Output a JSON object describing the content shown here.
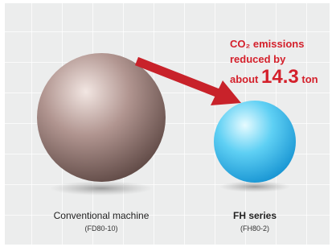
{
  "annotation": {
    "line1": "CO₂ emissions",
    "line2": "reduced by",
    "prefix": "about",
    "amount": 14.3,
    "unit": "ton"
  },
  "items": [
    {
      "name": "Conventional machine",
      "model": "(FD80-10)"
    },
    {
      "name": "FH series",
      "model": "(FH80-2)"
    }
  ]
}
